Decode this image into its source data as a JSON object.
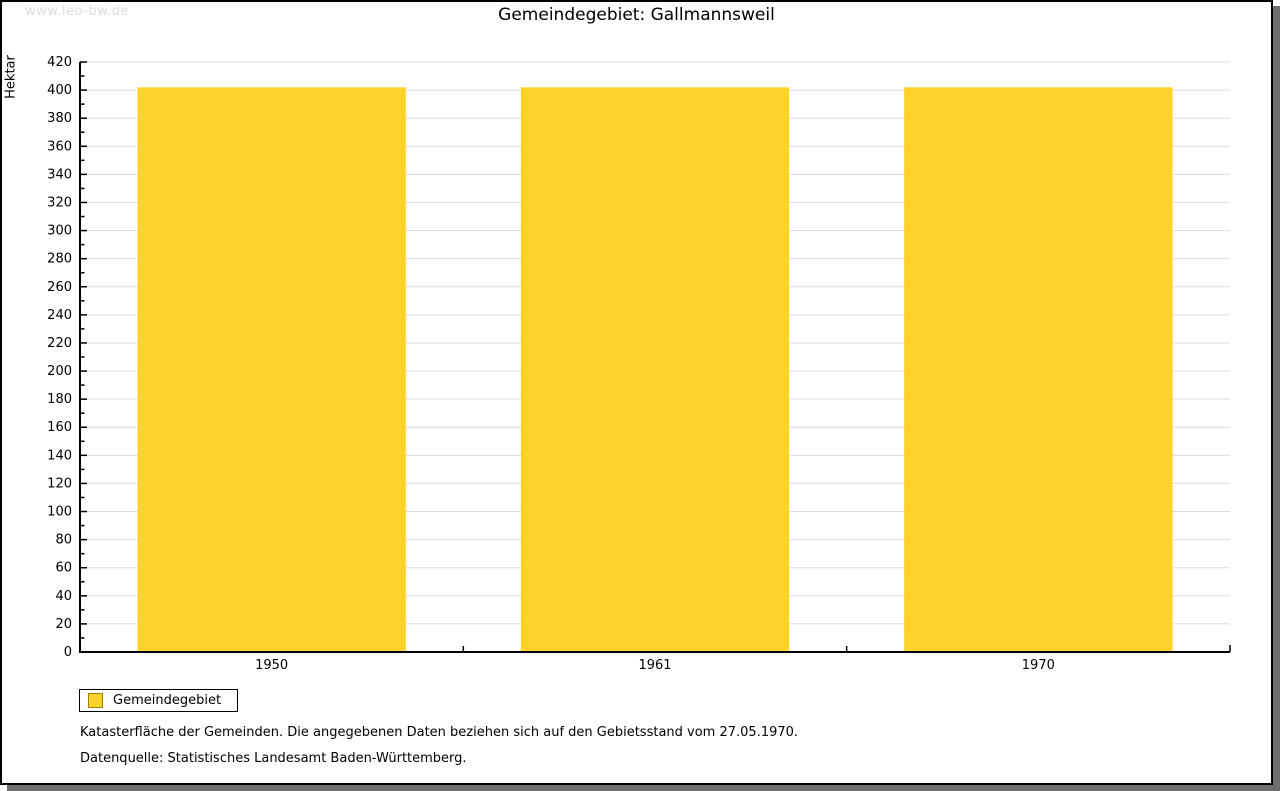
{
  "watermark": "www.leo-bw.de",
  "chart_data": {
    "type": "bar",
    "title": "Gemeindegebiet: Gallmannsweil",
    "categories": [
      "1950",
      "1961",
      "1970"
    ],
    "values": [
      402,
      402,
      402
    ],
    "series_name": "Gemeindegebiet",
    "xlabel": "",
    "ylabel": "Hektar",
    "ylim": [
      0,
      420
    ],
    "y_major_step": 20,
    "y_minor_step": 10,
    "grid": true,
    "bar_color": "#FDD32B",
    "bar_border_color": "#a08000",
    "grid_color": "#dcdcdc",
    "axis_color": "#000000",
    "legend_position": "bottom-left"
  },
  "legend": {
    "items": [
      {
        "label": "Gemeindegebiet",
        "color": "#FDD32B"
      }
    ]
  },
  "notes": {
    "line1": "Katasterfläche der Gemeinden. Die angegebenen Daten beziehen sich auf den Gebietsstand vom 27.05.1970.",
    "line2": "Datenquelle: Statistisches Landesamt Baden-Württemberg."
  }
}
